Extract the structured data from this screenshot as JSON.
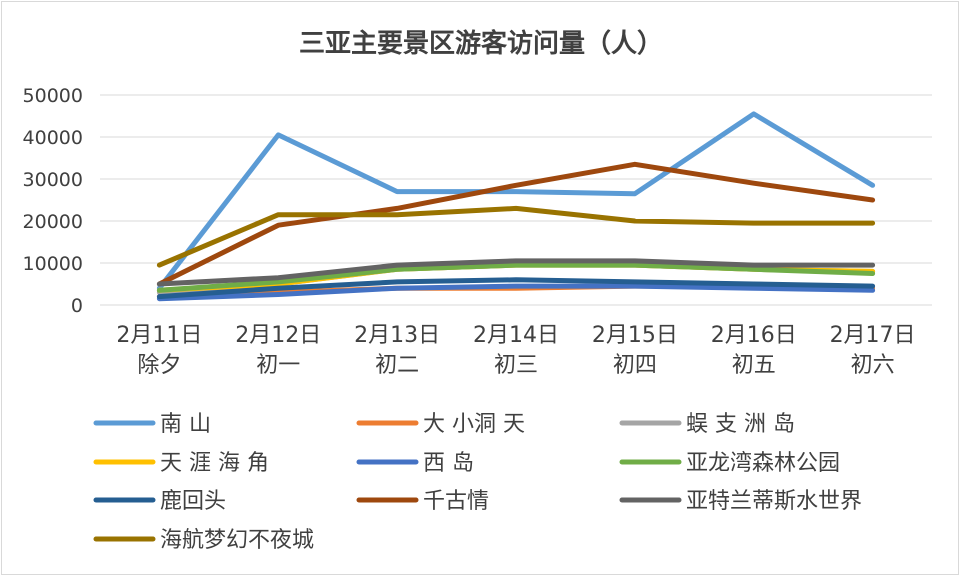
{
  "chart_data": {
    "type": "line",
    "title": "三亚主要景区游客访问量（人）",
    "xlabel": "",
    "ylabel": "",
    "ylim": [
      0,
      50000
    ],
    "yticks": [
      "0",
      "10000",
      "20000",
      "30000",
      "40000",
      "50000"
    ],
    "grid": true,
    "legend_position": "bottom",
    "categories": [
      [
        "2月11日",
        "除夕"
      ],
      [
        "2月12日",
        "初一"
      ],
      [
        "2月13日",
        "初二"
      ],
      [
        "2月14日",
        "初三"
      ],
      [
        "2月15日",
        "初四"
      ],
      [
        "2月16日",
        "初五"
      ],
      [
        "2月17日",
        "初六"
      ]
    ],
    "series": [
      {
        "name": "南 山",
        "color": "#5b9bd5",
        "values": [
          4000,
          40500,
          27000,
          27000,
          26500,
          45500,
          28500
        ]
      },
      {
        "name": "大 小洞 天",
        "color": "#ed7d31",
        "values": [
          2000,
          3000,
          4000,
          4000,
          4500,
          4500,
          4000
        ]
      },
      {
        "name": "蜈 支 洲 岛",
        "color": "#a5a5a5",
        "values": [
          3000,
          5000,
          8500,
          9500,
          9500,
          8500,
          8000
        ]
      },
      {
        "name": "天 涯 海 角",
        "color": "#ffc000",
        "values": [
          3500,
          5000,
          8500,
          9500,
          9500,
          8500,
          8000
        ]
      },
      {
        "name": "西 岛",
        "color": "#4472c4",
        "values": [
          1500,
          2500,
          4000,
          4500,
          4500,
          4000,
          3500
        ]
      },
      {
        "name": "亚龙湾森林公园",
        "color": "#70ad47",
        "values": [
          3500,
          5500,
          8500,
          9500,
          9500,
          8500,
          7500
        ]
      },
      {
        "name": "鹿回头",
        "color": "#255e91",
        "values": [
          2000,
          4000,
          5500,
          6000,
          5500,
          5000,
          4500
        ]
      },
      {
        "name": "千古情",
        "color": "#9e480e",
        "values": [
          5000,
          19000,
          23000,
          28500,
          33500,
          29000,
          25000
        ]
      },
      {
        "name": "亚特兰蒂斯水世界",
        "color": "#636363",
        "values": [
          5000,
          6500,
          9500,
          10500,
          10500,
          9500,
          9500
        ]
      },
      {
        "name": "海航梦幻不夜城",
        "color": "#997300",
        "values": [
          9500,
          21500,
          21500,
          23000,
          20000,
          19500,
          19500
        ]
      }
    ]
  }
}
